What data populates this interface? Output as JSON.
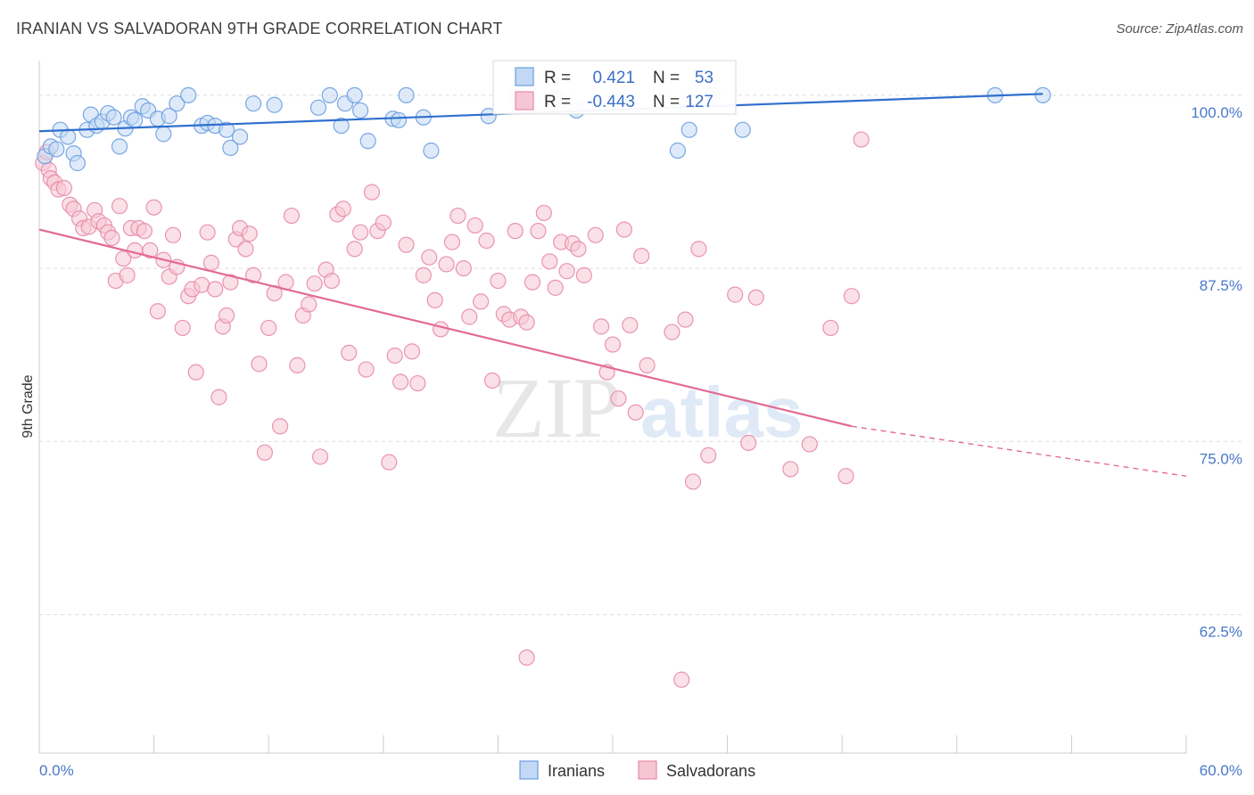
{
  "header": {
    "title": "IRANIAN VS SALVADORAN 9TH GRADE CORRELATION CHART",
    "source": "Source: ZipAtlas.com"
  },
  "watermark": {
    "zip": "ZIP",
    "atlas": "atlas"
  },
  "chart_data": {
    "type": "scatter",
    "title": "IRANIAN VS SALVADORAN 9TH GRADE CORRELATION CHART",
    "xlabel": "",
    "ylabel": "9th Grade",
    "xlim": [
      0,
      60
    ],
    "ylim": [
      52.5,
      102.5
    ],
    "x_tick_labels": [
      {
        "value": 0,
        "label": "0.0%"
      },
      {
        "value": 60,
        "label": "60.0%"
      }
    ],
    "y_tick_labels": [
      {
        "value": 100,
        "label": "100.0%"
      },
      {
        "value": 87.5,
        "label": "87.5%"
      },
      {
        "value": 75,
        "label": "75.0%"
      },
      {
        "value": 62.5,
        "label": "62.5%"
      }
    ],
    "grid": true,
    "legend_position": "top-center",
    "stats_legend": [
      {
        "r_label": "R =",
        "r_value": "0.421",
        "n_label": "N =",
        "n_value": "53"
      },
      {
        "r_label": "R =",
        "r_value": "-0.443",
        "n_label": "N =",
        "n_value": "127"
      }
    ],
    "series": [
      {
        "name": "Iranians",
        "color": "#6a9ee0",
        "fill": "#c2d8f4",
        "trend": {
          "x": [
            0,
            52.5
          ],
          "y": [
            97.4,
            100.1
          ]
        },
        "points": [
          [
            0.3,
            95.6
          ],
          [
            0.6,
            96.3
          ],
          [
            0.9,
            96.1
          ],
          [
            1.1,
            97.5
          ],
          [
            1.5,
            97.0
          ],
          [
            1.8,
            95.8
          ],
          [
            2.0,
            95.1
          ],
          [
            2.5,
            97.5
          ],
          [
            2.7,
            98.6
          ],
          [
            3.0,
            97.8
          ],
          [
            3.3,
            98.1
          ],
          [
            3.6,
            98.7
          ],
          [
            3.9,
            98.4
          ],
          [
            4.2,
            96.3
          ],
          [
            4.5,
            97.6
          ],
          [
            4.8,
            98.4
          ],
          [
            5.0,
            98.2
          ],
          [
            5.4,
            99.2
          ],
          [
            5.7,
            98.9
          ],
          [
            6.2,
            98.3
          ],
          [
            6.5,
            97.2
          ],
          [
            6.8,
            98.5
          ],
          [
            7.2,
            99.4
          ],
          [
            7.8,
            100.0
          ],
          [
            8.5,
            97.8
          ],
          [
            8.8,
            98.0
          ],
          [
            9.2,
            97.8
          ],
          [
            9.8,
            97.5
          ],
          [
            10.0,
            96.2
          ],
          [
            10.5,
            97.0
          ],
          [
            11.2,
            99.4
          ],
          [
            12.3,
            99.3
          ],
          [
            14.6,
            99.1
          ],
          [
            15.2,
            100.0
          ],
          [
            15.8,
            97.8
          ],
          [
            16.0,
            99.4
          ],
          [
            16.5,
            100.0
          ],
          [
            16.8,
            98.9
          ],
          [
            17.2,
            96.7
          ],
          [
            18.5,
            98.3
          ],
          [
            18.8,
            98.2
          ],
          [
            19.2,
            100.0
          ],
          [
            20.1,
            98.4
          ],
          [
            20.5,
            96.0
          ],
          [
            23.5,
            98.5
          ],
          [
            25.0,
            100.0
          ],
          [
            27.0,
            99.8
          ],
          [
            28.1,
            98.9
          ],
          [
            33.4,
            96.0
          ],
          [
            34.0,
            97.5
          ],
          [
            35.2,
            100.0
          ],
          [
            36.8,
            97.5
          ],
          [
            50.0,
            100.0
          ],
          [
            52.5,
            100.0
          ]
        ]
      },
      {
        "name": "Salvadorans",
        "color": "#e88aa8",
        "fill": "#f6c6d4",
        "trend": {
          "x": [
            0,
            42.5
          ],
          "y": [
            90.3,
            76.1
          ]
        },
        "trend_dashed": {
          "x": [
            42.5,
            60
          ],
          "y": [
            76.1,
            72.5
          ]
        },
        "points": [
          [
            0.2,
            95.1
          ],
          [
            0.4,
            95.9
          ],
          [
            0.5,
            94.6
          ],
          [
            0.6,
            94.0
          ],
          [
            0.8,
            93.7
          ],
          [
            1.0,
            93.2
          ],
          [
            1.3,
            93.3
          ],
          [
            1.6,
            92.1
          ],
          [
            1.8,
            91.8
          ],
          [
            2.1,
            91.1
          ],
          [
            2.3,
            90.4
          ],
          [
            2.6,
            90.5
          ],
          [
            2.9,
            91.7
          ],
          [
            3.1,
            90.9
          ],
          [
            3.4,
            90.6
          ],
          [
            3.6,
            90.1
          ],
          [
            3.8,
            89.7
          ],
          [
            4.0,
            86.6
          ],
          [
            4.2,
            92.0
          ],
          [
            4.4,
            88.2
          ],
          [
            4.6,
            87.0
          ],
          [
            4.8,
            90.4
          ],
          [
            5.0,
            88.8
          ],
          [
            5.2,
            90.4
          ],
          [
            5.5,
            90.2
          ],
          [
            5.8,
            88.8
          ],
          [
            6.0,
            91.9
          ],
          [
            6.2,
            84.4
          ],
          [
            6.5,
            88.1
          ],
          [
            6.8,
            86.9
          ],
          [
            7.0,
            89.9
          ],
          [
            7.2,
            87.6
          ],
          [
            7.5,
            83.2
          ],
          [
            7.8,
            85.5
          ],
          [
            8.0,
            86.0
          ],
          [
            8.2,
            80.0
          ],
          [
            8.5,
            86.3
          ],
          [
            8.8,
            90.1
          ],
          [
            9.0,
            87.9
          ],
          [
            9.2,
            86.0
          ],
          [
            9.4,
            78.2
          ],
          [
            9.6,
            83.3
          ],
          [
            9.8,
            84.1
          ],
          [
            10.0,
            86.5
          ],
          [
            10.3,
            89.6
          ],
          [
            10.5,
            90.4
          ],
          [
            10.8,
            88.9
          ],
          [
            11.0,
            90.0
          ],
          [
            11.2,
            87.0
          ],
          [
            11.5,
            80.6
          ],
          [
            11.8,
            74.2
          ],
          [
            12.0,
            83.2
          ],
          [
            12.3,
            85.7
          ],
          [
            12.6,
            76.1
          ],
          [
            12.9,
            86.5
          ],
          [
            13.2,
            91.3
          ],
          [
            13.5,
            80.5
          ],
          [
            13.8,
            84.1
          ],
          [
            14.1,
            84.9
          ],
          [
            14.4,
            86.4
          ],
          [
            14.7,
            73.9
          ],
          [
            15.0,
            87.4
          ],
          [
            15.3,
            86.6
          ],
          [
            15.6,
            91.4
          ],
          [
            15.9,
            91.8
          ],
          [
            16.2,
            81.4
          ],
          [
            16.5,
            88.9
          ],
          [
            16.8,
            90.1
          ],
          [
            17.1,
            80.2
          ],
          [
            17.4,
            93.0
          ],
          [
            17.7,
            90.2
          ],
          [
            18.0,
            90.8
          ],
          [
            18.3,
            73.5
          ],
          [
            18.6,
            81.2
          ],
          [
            18.9,
            79.3
          ],
          [
            19.2,
            89.2
          ],
          [
            19.5,
            81.5
          ],
          [
            19.8,
            79.2
          ],
          [
            20.1,
            87.0
          ],
          [
            20.4,
            88.3
          ],
          [
            20.7,
            85.2
          ],
          [
            21.0,
            83.1
          ],
          [
            21.3,
            87.8
          ],
          [
            21.6,
            89.4
          ],
          [
            21.9,
            91.3
          ],
          [
            22.2,
            87.5
          ],
          [
            22.5,
            84.0
          ],
          [
            22.8,
            90.6
          ],
          [
            23.1,
            85.1
          ],
          [
            23.4,
            89.5
          ],
          [
            23.7,
            79.4
          ],
          [
            24.0,
            86.6
          ],
          [
            24.3,
            84.2
          ],
          [
            24.6,
            83.8
          ],
          [
            24.9,
            90.2
          ],
          [
            25.2,
            84.0
          ],
          [
            25.5,
            83.6
          ],
          [
            25.8,
            86.5
          ],
          [
            26.1,
            90.2
          ],
          [
            26.4,
            91.5
          ],
          [
            26.7,
            88.0
          ],
          [
            27.0,
            86.1
          ],
          [
            27.3,
            89.4
          ],
          [
            27.6,
            87.3
          ],
          [
            27.9,
            89.3
          ],
          [
            28.2,
            88.9
          ],
          [
            28.5,
            87.0
          ],
          [
            29.1,
            89.9
          ],
          [
            29.4,
            83.3
          ],
          [
            29.7,
            80.0
          ],
          [
            30.0,
            82.0
          ],
          [
            30.3,
            78.1
          ],
          [
            30.6,
            90.3
          ],
          [
            30.9,
            83.4
          ],
          [
            31.2,
            77.1
          ],
          [
            31.5,
            88.4
          ],
          [
            31.8,
            80.5
          ],
          [
            33.1,
            82.9
          ],
          [
            33.8,
            83.8
          ],
          [
            34.2,
            72.1
          ],
          [
            34.5,
            88.9
          ],
          [
            35.0,
            74.0
          ],
          [
            36.4,
            85.6
          ],
          [
            37.1,
            74.9
          ],
          [
            37.5,
            85.4
          ],
          [
            39.3,
            73.0
          ],
          [
            40.3,
            74.8
          ],
          [
            41.4,
            83.2
          ],
          [
            42.5,
            85.5
          ],
          [
            42.2,
            72.5
          ],
          [
            25.5,
            59.4
          ],
          [
            33.6,
            57.8
          ],
          [
            43.0,
            96.8
          ]
        ]
      }
    ]
  },
  "legend": {
    "items": [
      {
        "label": "Iranians",
        "color": "#6a9ee0",
        "fill": "#c2d8f4"
      },
      {
        "label": "Salvadorans",
        "color": "#e88aa8",
        "fill": "#f6c6d4"
      }
    ]
  }
}
